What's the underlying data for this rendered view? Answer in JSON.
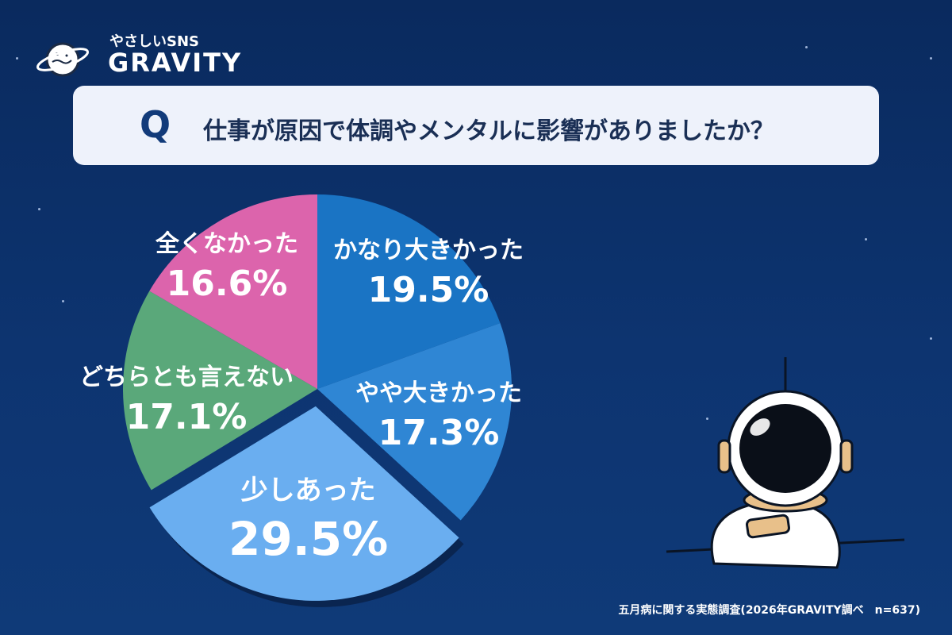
{
  "logo": {
    "tagline": "やさしいSNS",
    "name": "GRAVITY"
  },
  "question": {
    "mark": "Q",
    "text": "仕事が原因で体調やメンタルに影響がありましたか？"
  },
  "chart_data": {
    "type": "pie",
    "title": "仕事が原因で体調やメンタルに影響がありましたか？",
    "slices": [
      {
        "label": "かなり大きかった",
        "value": 19.5,
        "display": "19.5%",
        "color": "#1a74c4"
      },
      {
        "label": "やや大きかった",
        "value": 17.3,
        "display": "17.3%",
        "color": "#2f86d4"
      },
      {
        "label": "少しあった",
        "value": 29.5,
        "display": "29.5%",
        "color": "#6aaef0",
        "exploded": true
      },
      {
        "label": "どちらとも言えない",
        "value": 17.1,
        "display": "17.1%",
        "color": "#5aa87a"
      },
      {
        "label": "全くなかった",
        "value": 16.6,
        "display": "16.6%",
        "color": "#dc64ac"
      }
    ],
    "start": "12 o'clock",
    "direction": "clockwise",
    "labels": "inside slices"
  },
  "source": "五月病に関する実態調査(2026年GRAVITY調べ　n=637)"
}
